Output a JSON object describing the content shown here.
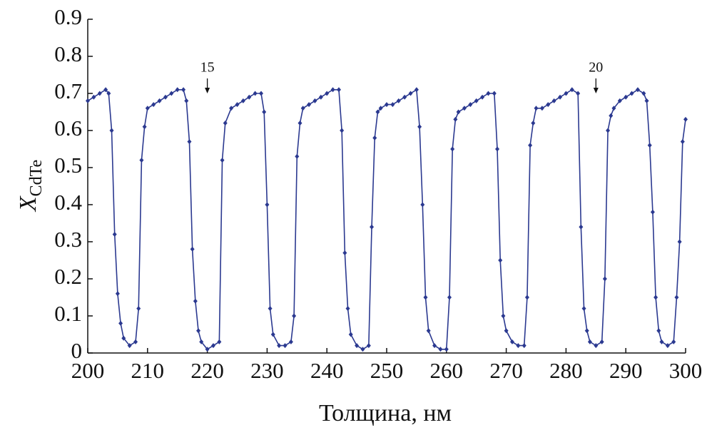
{
  "chart_data": {
    "type": "line",
    "x_label": "Толщина, нм",
    "y_label": {
      "main": "X",
      "sub": "CdTe"
    },
    "xlim": [
      200,
      300
    ],
    "xticks": [
      200,
      210,
      220,
      230,
      240,
      250,
      260,
      270,
      280,
      290,
      300
    ],
    "ylim": [
      0,
      0.9
    ],
    "yticks": [
      0,
      0.1,
      0.2,
      0.3,
      0.4,
      0.5,
      0.6,
      0.7,
      0.8,
      0.9
    ],
    "annotations": [
      {
        "text": "15",
        "x": 220
      },
      {
        "text": "20",
        "x": 285
      }
    ],
    "series": [
      {
        "color": "#2b3990",
        "x": [
          200,
          201,
          202,
          203,
          203.5,
          204,
          204.5,
          205,
          205.5,
          206,
          207,
          208,
          208.5,
          209,
          209.5,
          210,
          211,
          212,
          213,
          214,
          215,
          216,
          216.5,
          217,
          217.5,
          218,
          218.5,
          219,
          220,
          221,
          222,
          222.5,
          223,
          224,
          225,
          226,
          227,
          228,
          229,
          229.5,
          230,
          230.5,
          231,
          232,
          233,
          234,
          234.5,
          235,
          235.5,
          236,
          237,
          238,
          239,
          240,
          241,
          242,
          242.5,
          243,
          243.5,
          244,
          245,
          246,
          247,
          247.5,
          248,
          248.5,
          249,
          250,
          251,
          252,
          253,
          254,
          255,
          255.5,
          256,
          256.5,
          257,
          258,
          259,
          260,
          260.5,
          261,
          261.5,
          262,
          263,
          264,
          265,
          266,
          267,
          268,
          268.5,
          269,
          269.5,
          270,
          271,
          272,
          273,
          273.5,
          274,
          274.5,
          275,
          276,
          277,
          278,
          279,
          280,
          281,
          282,
          282.5,
          283,
          283.5,
          284,
          285,
          286,
          286.5,
          287,
          287.5,
          288,
          289,
          290,
          291,
          292,
          293,
          293.5,
          294,
          294.5,
          295,
          295.5,
          296,
          297,
          298,
          298.5,
          299,
          299.5,
          300
        ],
        "values": [
          0.68,
          0.69,
          0.7,
          0.71,
          0.7,
          0.6,
          0.32,
          0.16,
          0.08,
          0.04,
          0.02,
          0.03,
          0.12,
          0.52,
          0.61,
          0.66,
          0.67,
          0.68,
          0.69,
          0.7,
          0.71,
          0.71,
          0.68,
          0.57,
          0.28,
          0.14,
          0.06,
          0.03,
          0.01,
          0.02,
          0.03,
          0.52,
          0.62,
          0.66,
          0.67,
          0.68,
          0.69,
          0.7,
          0.7,
          0.65,
          0.4,
          0.12,
          0.05,
          0.02,
          0.02,
          0.03,
          0.1,
          0.53,
          0.62,
          0.66,
          0.67,
          0.68,
          0.69,
          0.7,
          0.71,
          0.71,
          0.6,
          0.27,
          0.12,
          0.05,
          0.02,
          0.01,
          0.02,
          0.34,
          0.58,
          0.65,
          0.66,
          0.67,
          0.67,
          0.68,
          0.69,
          0.7,
          0.71,
          0.61,
          0.4,
          0.15,
          0.06,
          0.02,
          0.01,
          0.01,
          0.15,
          0.55,
          0.63,
          0.65,
          0.66,
          0.67,
          0.68,
          0.69,
          0.7,
          0.7,
          0.55,
          0.25,
          0.1,
          0.06,
          0.03,
          0.02,
          0.02,
          0.15,
          0.56,
          0.62,
          0.66,
          0.66,
          0.67,
          0.68,
          0.69,
          0.7,
          0.71,
          0.7,
          0.34,
          0.12,
          0.06,
          0.03,
          0.02,
          0.03,
          0.2,
          0.6,
          0.64,
          0.66,
          0.68,
          0.69,
          0.7,
          0.71,
          0.7,
          0.68,
          0.56,
          0.38,
          0.15,
          0.06,
          0.03,
          0.02,
          0.03,
          0.15,
          0.3,
          0.57,
          0.63
        ]
      }
    ]
  }
}
